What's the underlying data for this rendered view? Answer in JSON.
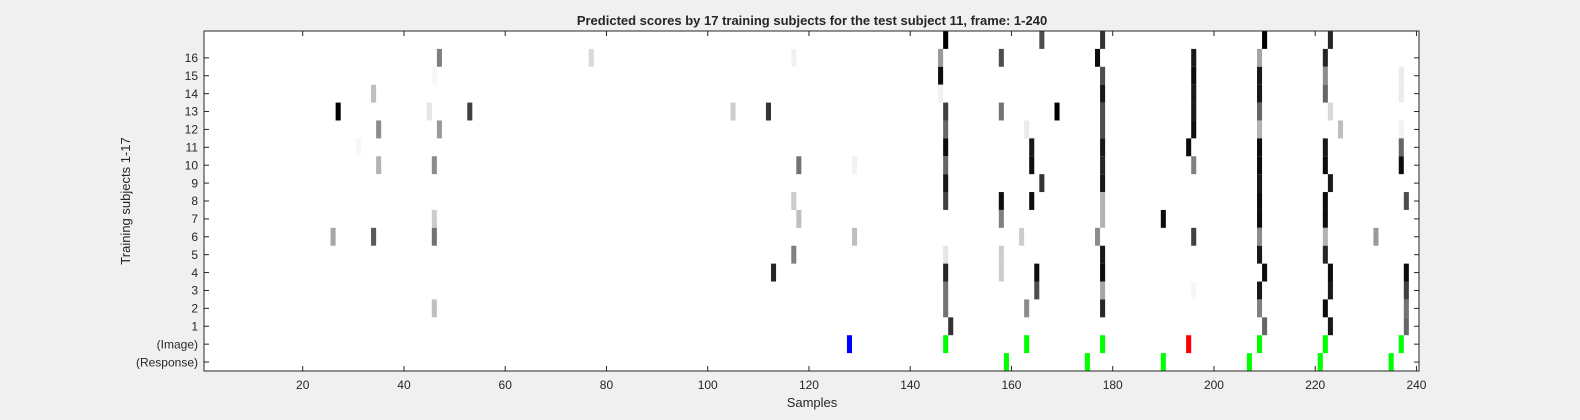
{
  "chart_data": {
    "type": "heatmap",
    "title": "Predicted scores by 17 training subjects for the test subject 11, frame: 1-240",
    "xlabel": "Samples",
    "ylabel": "Training subjects 1-17",
    "xlim": [
      1,
      240
    ],
    "x_ticks": [
      20,
      40,
      60,
      80,
      100,
      120,
      140,
      160,
      180,
      200,
      220,
      240
    ],
    "y_tick_labels": [
      "(Response)",
      "(Image)",
      "1",
      "2",
      "3",
      "4",
      "5",
      "6",
      "7",
      "8",
      "9",
      "10",
      "11",
      "12",
      "13",
      "14",
      "15",
      "16"
    ],
    "grid": false,
    "colormap": "gray (higher score = darker)",
    "rows": [
      {
        "row": 17,
        "cells": [
          [
            147,
            1.0
          ],
          [
            166,
            0.7
          ],
          [
            178,
            0.8
          ],
          [
            210,
            1.0
          ],
          [
            223,
            0.85
          ]
        ]
      },
      {
        "row": 16,
        "cells": [
          [
            47,
            0.5
          ],
          [
            77,
            0.15
          ],
          [
            117,
            0.05
          ],
          [
            146,
            0.4
          ],
          [
            158,
            0.7
          ],
          [
            177,
            0.95
          ],
          [
            196,
            0.9
          ],
          [
            209,
            0.35
          ],
          [
            222,
            0.85
          ]
        ]
      },
      {
        "row": 15,
        "cells": [
          [
            46,
            0.03
          ],
          [
            146,
            0.95
          ],
          [
            178,
            0.7
          ],
          [
            196,
            0.95
          ],
          [
            209,
            0.9
          ],
          [
            222,
            0.45
          ],
          [
            237,
            0.08
          ]
        ]
      },
      {
        "row": 14,
        "cells": [
          [
            34,
            0.25
          ],
          [
            146,
            0.05
          ],
          [
            178,
            0.9
          ],
          [
            196,
            0.9
          ],
          [
            209,
            0.9
          ],
          [
            222,
            0.6
          ],
          [
            237,
            0.08
          ]
        ]
      },
      {
        "row": 13,
        "cells": [
          [
            27,
            1.0
          ],
          [
            45,
            0.1
          ],
          [
            53,
            0.75
          ],
          [
            105,
            0.2
          ],
          [
            112,
            0.8
          ],
          [
            147,
            0.75
          ],
          [
            158,
            0.55
          ],
          [
            169,
            1.0
          ],
          [
            178,
            0.7
          ],
          [
            196,
            0.9
          ],
          [
            209,
            0.6
          ],
          [
            223,
            0.15
          ]
        ]
      },
      {
        "row": 12,
        "cells": [
          [
            35,
            0.45
          ],
          [
            47,
            0.4
          ],
          [
            147,
            0.6
          ],
          [
            163,
            0.08
          ],
          [
            178,
            0.7
          ],
          [
            196,
            0.95
          ],
          [
            209,
            0.3
          ],
          [
            225,
            0.25
          ],
          [
            237,
            0.05
          ]
        ]
      },
      {
        "row": 11,
        "cells": [
          [
            31,
            0.03
          ],
          [
            147,
            0.95
          ],
          [
            164,
            0.9
          ],
          [
            178,
            0.9
          ],
          [
            195,
            0.95
          ],
          [
            209,
            0.95
          ],
          [
            222,
            0.9
          ],
          [
            237,
            0.6
          ]
        ]
      },
      {
        "row": 10,
        "cells": [
          [
            35,
            0.3
          ],
          [
            46,
            0.45
          ],
          [
            118,
            0.55
          ],
          [
            129,
            0.05
          ],
          [
            147,
            0.6
          ],
          [
            164,
            0.95
          ],
          [
            178,
            0.85
          ],
          [
            196,
            0.5
          ],
          [
            209,
            0.95
          ],
          [
            222,
            0.95
          ],
          [
            237,
            0.95
          ]
        ]
      },
      {
        "row": 9,
        "cells": [
          [
            147,
            0.9
          ],
          [
            166,
            0.8
          ],
          [
            178,
            0.9
          ],
          [
            209,
            0.9
          ],
          [
            223,
            0.9
          ]
        ]
      },
      {
        "row": 8,
        "cells": [
          [
            117,
            0.2
          ],
          [
            147,
            0.75
          ],
          [
            158,
            0.95
          ],
          [
            164,
            0.95
          ],
          [
            178,
            0.3
          ],
          [
            209,
            0.95
          ],
          [
            222,
            0.95
          ],
          [
            238,
            0.7
          ]
        ]
      },
      {
        "row": 7,
        "cells": [
          [
            46,
            0.2
          ],
          [
            118,
            0.25
          ],
          [
            158,
            0.5
          ],
          [
            178,
            0.3
          ],
          [
            190,
            0.95
          ],
          [
            209,
            0.95
          ],
          [
            222,
            0.95
          ]
        ]
      },
      {
        "row": 6,
        "cells": [
          [
            26,
            0.35
          ],
          [
            34,
            0.65
          ],
          [
            46,
            0.55
          ],
          [
            129,
            0.25
          ],
          [
            162,
            0.2
          ],
          [
            177,
            0.45
          ],
          [
            196,
            0.75
          ],
          [
            209,
            0.45
          ],
          [
            222,
            0.3
          ],
          [
            232,
            0.4
          ]
        ]
      },
      {
        "row": 5,
        "cells": [
          [
            117,
            0.5
          ],
          [
            147,
            0.1
          ],
          [
            158,
            0.2
          ],
          [
            178,
            0.9
          ],
          [
            209,
            0.9
          ],
          [
            222,
            0.85
          ]
        ]
      },
      {
        "row": 4,
        "cells": [
          [
            113,
            0.85
          ],
          [
            147,
            0.85
          ],
          [
            158,
            0.2
          ],
          [
            165,
            0.95
          ],
          [
            178,
            0.95
          ],
          [
            210,
            0.95
          ],
          [
            223,
            0.95
          ],
          [
            238,
            0.95
          ]
        ]
      },
      {
        "row": 3,
        "cells": [
          [
            147,
            0.55
          ],
          [
            165,
            0.7
          ],
          [
            178,
            0.35
          ],
          [
            196,
            0.03
          ],
          [
            209,
            0.9
          ],
          [
            223,
            0.9
          ],
          [
            238,
            0.75
          ]
        ]
      },
      {
        "row": 2,
        "cells": [
          [
            46,
            0.25
          ],
          [
            147,
            0.55
          ],
          [
            163,
            0.45
          ],
          [
            178,
            0.85
          ],
          [
            209,
            0.5
          ],
          [
            222,
            0.95
          ],
          [
            238,
            0.55
          ]
        ]
      },
      {
        "row": 1,
        "cells": [
          [
            148,
            0.8
          ],
          [
            210,
            0.6
          ],
          [
            223,
            0.9
          ],
          [
            238,
            0.6
          ]
        ]
      }
    ],
    "image_markers": [
      {
        "x": 128,
        "color": "#0000ff"
      },
      {
        "x": 147,
        "color": "#00ff00"
      },
      {
        "x": 163,
        "color": "#00ff00"
      },
      {
        "x": 178,
        "color": "#00ff00"
      },
      {
        "x": 195,
        "color": "#ff0000"
      },
      {
        "x": 209,
        "color": "#00ff00"
      },
      {
        "x": 222,
        "color": "#00ff00"
      },
      {
        "x": 237,
        "color": "#00ff00"
      }
    ],
    "response_markers": [
      {
        "x": 159,
        "color": "#00ff00"
      },
      {
        "x": 175,
        "color": "#00ff00"
      },
      {
        "x": 190,
        "color": "#00ff00"
      },
      {
        "x": 207,
        "color": "#00ff00"
      },
      {
        "x": 221,
        "color": "#00ff00"
      },
      {
        "x": 235,
        "color": "#00ff00"
      }
    ]
  }
}
